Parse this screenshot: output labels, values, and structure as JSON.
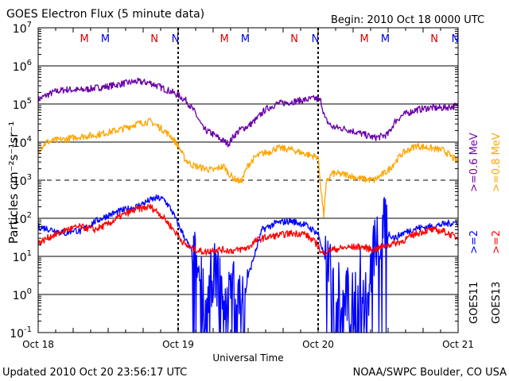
{
  "chart_data": {
    "type": "line",
    "title": "GOES Electron Flux (5 minute data)",
    "begin_text": "Begin: 2010 Oct 18 0000 UTC",
    "ylabel": "Particles cm⁻²s⁻¹sr⁻¹",
    "xlabel": "Universal Time",
    "x_tick_labels": [
      "Oct 18",
      "Oct 19",
      "Oct 20",
      "Oct 21"
    ],
    "x_range_days": [
      0,
      3
    ],
    "y_scale": "log",
    "ylim": [
      0.1,
      10000000
    ],
    "y_tick_labels": [
      {
        "base": "10",
        "exp": "-1"
      },
      {
        "base": "10",
        "exp": "0"
      },
      {
        "base": "10",
        "exp": "1"
      },
      {
        "base": "10",
        "exp": "2"
      },
      {
        "base": "10",
        "exp": "3"
      },
      {
        "base": "10",
        "exp": "4"
      },
      {
        "base": "10",
        "exp": "5"
      },
      {
        "base": "10",
        "exp": "6"
      },
      {
        "base": "10",
        "exp": "7"
      }
    ],
    "grid_lines": [
      {
        "value": 1,
        "style": "solid"
      },
      {
        "value": 10,
        "style": "solid"
      },
      {
        "value": 100,
        "style": "solid"
      },
      {
        "value": 1000,
        "style": "dashed"
      },
      {
        "value": 10000,
        "style": "solid"
      },
      {
        "value": 100000,
        "style": "solid"
      },
      {
        "value": 1000000,
        "style": "solid"
      }
    ],
    "markers": [
      {
        "label": "M",
        "day": 0.33,
        "color": "#dd0000"
      },
      {
        "label": "M",
        "day": 0.48,
        "color": "#0000dd"
      },
      {
        "label": "N",
        "day": 0.83,
        "color": "#dd0000"
      },
      {
        "label": "N",
        "day": 0.98,
        "color": "#0000dd"
      },
      {
        "label": "M",
        "day": 1.33,
        "color": "#dd0000"
      },
      {
        "label": "M",
        "day": 1.48,
        "color": "#0000dd"
      },
      {
        "label": "N",
        "day": 1.83,
        "color": "#dd0000"
      },
      {
        "label": "N",
        "day": 1.98,
        "color": "#0000dd"
      },
      {
        "label": "M",
        "day": 2.33,
        "color": "#dd0000"
      },
      {
        "label": "M",
        "day": 2.48,
        "color": "#0000dd"
      },
      {
        "label": "N",
        "day": 2.83,
        "color": "#dd0000"
      },
      {
        "label": "N",
        "day": 2.98,
        "color": "#0000dd"
      }
    ],
    "legend": {
      "goes11": {
        "name": "GOES11",
        "label_06": ">=0.6 MeV",
        "label_2": ">=2",
        "color_06": "#7700aa",
        "color_2": "#0000ff"
      },
      "goes13": {
        "name": "GOES13",
        "label_08": ">=0.8 MeV",
        "label_2": ">=2",
        "color_08": "#ffa500",
        "color_2": "#ff0000"
      }
    },
    "series": [
      {
        "id": "g11_06",
        "color": "#6a00a8",
        "spiky": false,
        "x": [
          0.0,
          0.06,
          0.12,
          0.2,
          0.3,
          0.4,
          0.5,
          0.6,
          0.7,
          0.8,
          0.85,
          0.9,
          0.95,
          1.0,
          1.06,
          1.12,
          1.18,
          1.25,
          1.3,
          1.36,
          1.4,
          1.45,
          1.5,
          1.56,
          1.62,
          1.7,
          1.78,
          1.85,
          1.92,
          1.98,
          2.02,
          2.05,
          2.1,
          2.2,
          2.3,
          2.4,
          2.45,
          2.5,
          2.55,
          2.6,
          2.65,
          2.7,
          2.75,
          2.8,
          2.85,
          2.9,
          2.95,
          3.0
        ],
        "y": [
          130000,
          170000,
          210000,
          240000,
          230000,
          260000,
          290000,
          340000,
          390000,
          360000,
          300000,
          250000,
          210000,
          170000,
          120000,
          60000,
          22000,
          16000,
          12000,
          9000,
          15000,
          22000,
          26000,
          40000,
          70000,
          100000,
          110000,
          120000,
          130000,
          140000,
          120000,
          40000,
          25000,
          22000,
          17000,
          13000,
          14000,
          16000,
          35000,
          50000,
          60000,
          70000,
          75000,
          80000,
          78000,
          80000,
          85000,
          90000
        ]
      },
      {
        "id": "g13_08",
        "color": "#ffa500",
        "spiky": false,
        "x": [
          0.0,
          0.06,
          0.12,
          0.2,
          0.3,
          0.4,
          0.5,
          0.6,
          0.7,
          0.8,
          0.85,
          0.9,
          0.95,
          1.0,
          1.05,
          1.1,
          1.15,
          1.2,
          1.25,
          1.3,
          1.33,
          1.36,
          1.4,
          1.45,
          1.5,
          1.55,
          1.6,
          1.65,
          1.7,
          1.8,
          1.9,
          2.0,
          2.02,
          2.04,
          2.06,
          2.1,
          2.2,
          2.3,
          2.4,
          2.5,
          2.55,
          2.6,
          2.7,
          2.8,
          2.9,
          3.0
        ],
        "y": [
          6000,
          10000,
          11000,
          12000,
          14000,
          15000,
          18000,
          22000,
          30000,
          35000,
          27000,
          20000,
          14000,
          8000,
          3500,
          2500,
          2200,
          2000,
          1800,
          2200,
          2300,
          1500,
          1100,
          900,
          2500,
          4000,
          5000,
          5500,
          7000,
          6500,
          5000,
          4000,
          600,
          120,
          900,
          1500,
          1400,
          1100,
          1000,
          1800,
          3000,
          5000,
          8000,
          7000,
          6000,
          3000
        ]
      },
      {
        "id": "g11_2",
        "color": "#0000ff",
        "spiky": true,
        "x": [
          0.0,
          0.05,
          0.1,
          0.15,
          0.2,
          0.25,
          0.3,
          0.4,
          0.5,
          0.6,
          0.7,
          0.8,
          0.85,
          0.9,
          0.95,
          1.0,
          1.05,
          1.1,
          1.13,
          1.16,
          1.2,
          1.25,
          1.3,
          1.35,
          1.4,
          1.45,
          1.5,
          1.6,
          1.7,
          1.8,
          1.9,
          2.0,
          2.05,
          2.1,
          2.15,
          2.2,
          2.25,
          2.3,
          2.35,
          2.4,
          2.45,
          2.5,
          2.55,
          2.6,
          2.7,
          2.8,
          2.9,
          3.0
        ],
        "y": [
          60,
          55,
          50,
          45,
          40,
          50,
          45,
          80,
          120,
          160,
          200,
          300,
          340,
          310,
          170,
          70,
          30,
          12,
          3,
          1,
          0.3,
          2,
          1,
          0.3,
          1,
          0.3,
          3,
          50,
          75,
          85,
          70,
          40,
          8,
          3,
          1,
          0.5,
          0.3,
          2,
          0.2,
          8,
          20,
          40,
          30,
          40,
          55,
          60,
          70,
          80
        ],
        "spike_ranges": [
          [
            1.1,
            1.5
          ],
          [
            2.05,
            2.5
          ]
        ]
      },
      {
        "id": "g13_2",
        "color": "#ff0000",
        "spiky": false,
        "x": [
          0.0,
          0.05,
          0.1,
          0.15,
          0.2,
          0.25,
          0.3,
          0.4,
          0.5,
          0.6,
          0.7,
          0.8,
          0.85,
          0.9,
          0.95,
          1.0,
          1.05,
          1.1,
          1.15,
          1.2,
          1.25,
          1.3,
          1.4,
          1.5,
          1.55,
          1.6,
          1.7,
          1.8,
          1.9,
          2.0,
          2.02,
          2.05,
          2.1,
          2.2,
          2.3,
          2.4,
          2.5,
          2.6,
          2.7,
          2.8,
          2.9,
          3.0
        ],
        "y": [
          22,
          28,
          35,
          40,
          50,
          55,
          60,
          50,
          70,
          120,
          170,
          200,
          150,
          100,
          60,
          35,
          20,
          16,
          14,
          13,
          15,
          15,
          14,
          17,
          25,
          30,
          35,
          40,
          40,
          20,
          12,
          13,
          15,
          17,
          18,
          15,
          20,
          25,
          40,
          50,
          45,
          30
        ]
      }
    ]
  },
  "footer": {
    "updated": "Updated 2010 Oct 20 23:56:17 UTC",
    "credit": "NOAA/SWPC Boulder, CO USA"
  }
}
